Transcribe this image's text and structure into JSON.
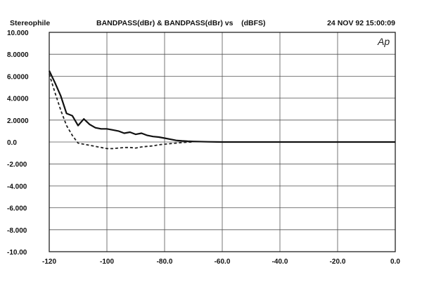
{
  "header": {
    "left": "Stereophile",
    "center": "BANDPASS(dBr) & BANDPASS(dBr) vs    (dBFS)",
    "right": "24 NOV 92 15:00:09"
  },
  "logo_text": "Ap",
  "chart_data": {
    "type": "line",
    "xlim": [
      -120,
      0
    ],
    "ylim": [
      -10,
      10
    ],
    "x_ticks": [
      -120,
      -100,
      -80,
      -60,
      -40,
      -20,
      0
    ],
    "x_tick_labels": [
      "-120",
      "-100",
      "-80.0",
      "-60.0",
      "-40.0",
      "-20.0",
      "0.0"
    ],
    "y_ticks": [
      10,
      8,
      6,
      4,
      2,
      0,
      -2,
      -4,
      -6,
      -8,
      -10
    ],
    "y_tick_labels": [
      "10.000",
      "8.0000",
      "6.0000",
      "4.0000",
      "2.0000",
      "0.0",
      "-2.000",
      "-4.000",
      "-6.000",
      "-8.000",
      "-10.00"
    ],
    "grid": true,
    "series": [
      {
        "style": "solid",
        "x": [
          -120,
          -118,
          -116,
          -114,
          -112,
          -110,
          -108,
          -106,
          -104,
          -102,
          -100,
          -98,
          -96,
          -94,
          -92,
          -90,
          -88,
          -86,
          -84,
          -82,
          -80,
          -78,
          -76,
          -74,
          -72,
          -70,
          -65,
          -60,
          -50,
          -40,
          -30,
          -20,
          -10,
          0
        ],
        "y": [
          6.5,
          5.4,
          4.2,
          2.6,
          2.4,
          1.5,
          2.1,
          1.6,
          1.3,
          1.2,
          1.2,
          1.1,
          1.0,
          0.8,
          0.9,
          0.7,
          0.8,
          0.6,
          0.5,
          0.45,
          0.35,
          0.25,
          0.15,
          0.1,
          0.07,
          0.05,
          0.02,
          0.0,
          0.0,
          0.0,
          0.0,
          0.0,
          0.0,
          0.0
        ]
      },
      {
        "style": "dashed",
        "x": [
          -120,
          -118,
          -116,
          -114,
          -112,
          -110,
          -108,
          -106,
          -104,
          -102,
          -100,
          -98,
          -96,
          -94,
          -92,
          -90,
          -88,
          -86,
          -84,
          -82,
          -80,
          -78,
          -76,
          -74,
          -72,
          -70
        ],
        "y": [
          6.2,
          4.5,
          2.9,
          1.5,
          0.6,
          -0.1,
          -0.2,
          -0.3,
          -0.4,
          -0.5,
          -0.6,
          -0.6,
          -0.55,
          -0.5,
          -0.5,
          -0.55,
          -0.45,
          -0.4,
          -0.35,
          -0.25,
          -0.2,
          -0.15,
          -0.1,
          -0.05,
          -0.02,
          0.0
        ]
      }
    ]
  }
}
